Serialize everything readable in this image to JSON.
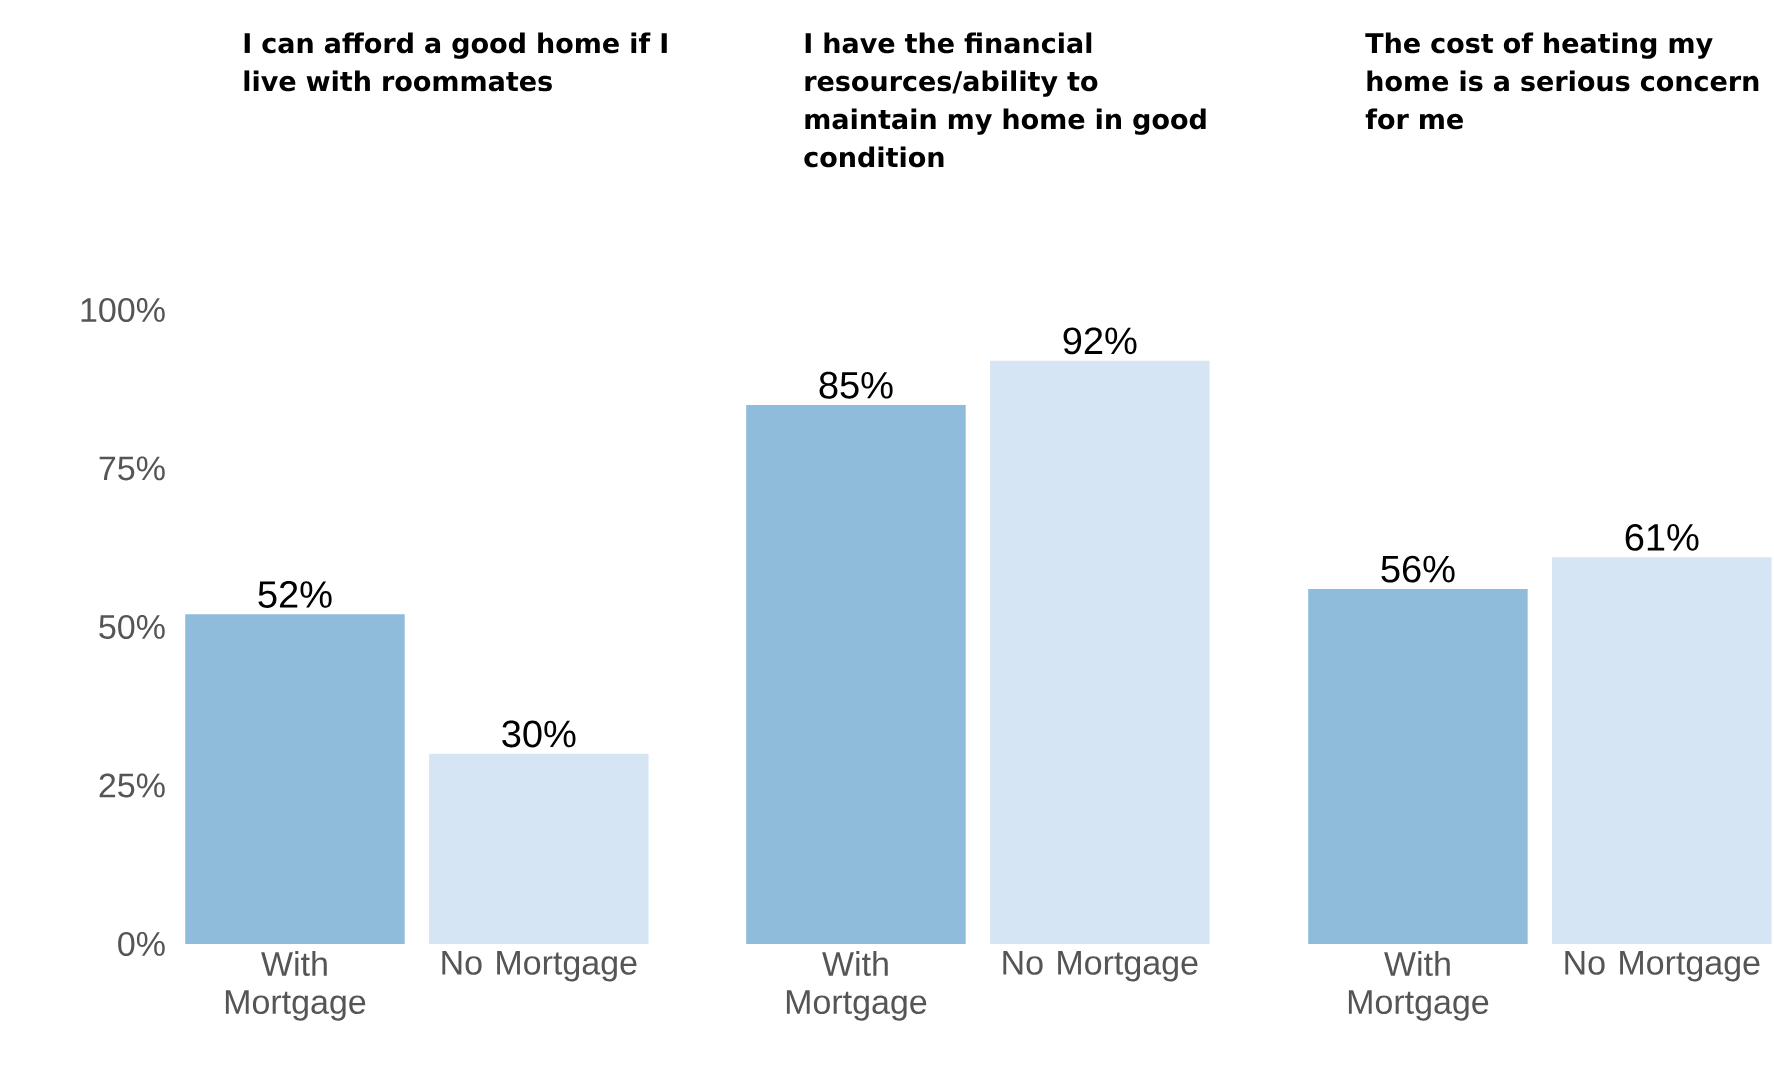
{
  "chart_data": [
    {
      "type": "bar",
      "title": "I can afford a good home if I live with roommates",
      "categories": [
        "With Mortgage",
        "No Mortgage"
      ],
      "values": [
        52,
        30
      ],
      "colors": [
        "#8fbcdb",
        "#d6e5f4"
      ],
      "value_labels": [
        "52%",
        "30%"
      ],
      "ylim": [
        0,
        100
      ],
      "yticks": [
        {
          "value": 0,
          "label": "0%"
        },
        {
          "value": 25,
          "label": "25%"
        },
        {
          "value": 50,
          "label": "50%"
        },
        {
          "value": 75,
          "label": "75%"
        },
        {
          "value": 100,
          "label": "100%"
        }
      ]
    },
    {
      "type": "bar",
      "title": "I have the financial resources/ability to maintain my home in good condition",
      "categories": [
        "With Mortgage",
        "No Mortgage"
      ],
      "values": [
        85,
        92
      ],
      "colors": [
        "#8fbcdb",
        "#d6e5f4"
      ],
      "value_labels": [
        "85%",
        "92%"
      ],
      "ylim": [
        0,
        100
      ],
      "tick_labels": "x"
    },
    {
      "type": "bar",
      "title": "The cost of heating my home is a serious concern for me",
      "categories": [
        "With Mortgage",
        "No Mortgage"
      ],
      "values": [
        56,
        61
      ],
      "colors": [
        "#8fbcdb",
        "#d6e5f4"
      ],
      "value_labels": [
        "56%",
        "61%"
      ],
      "ylim": [
        0,
        100
      ],
      "tick_labels": "x"
    }
  ]
}
